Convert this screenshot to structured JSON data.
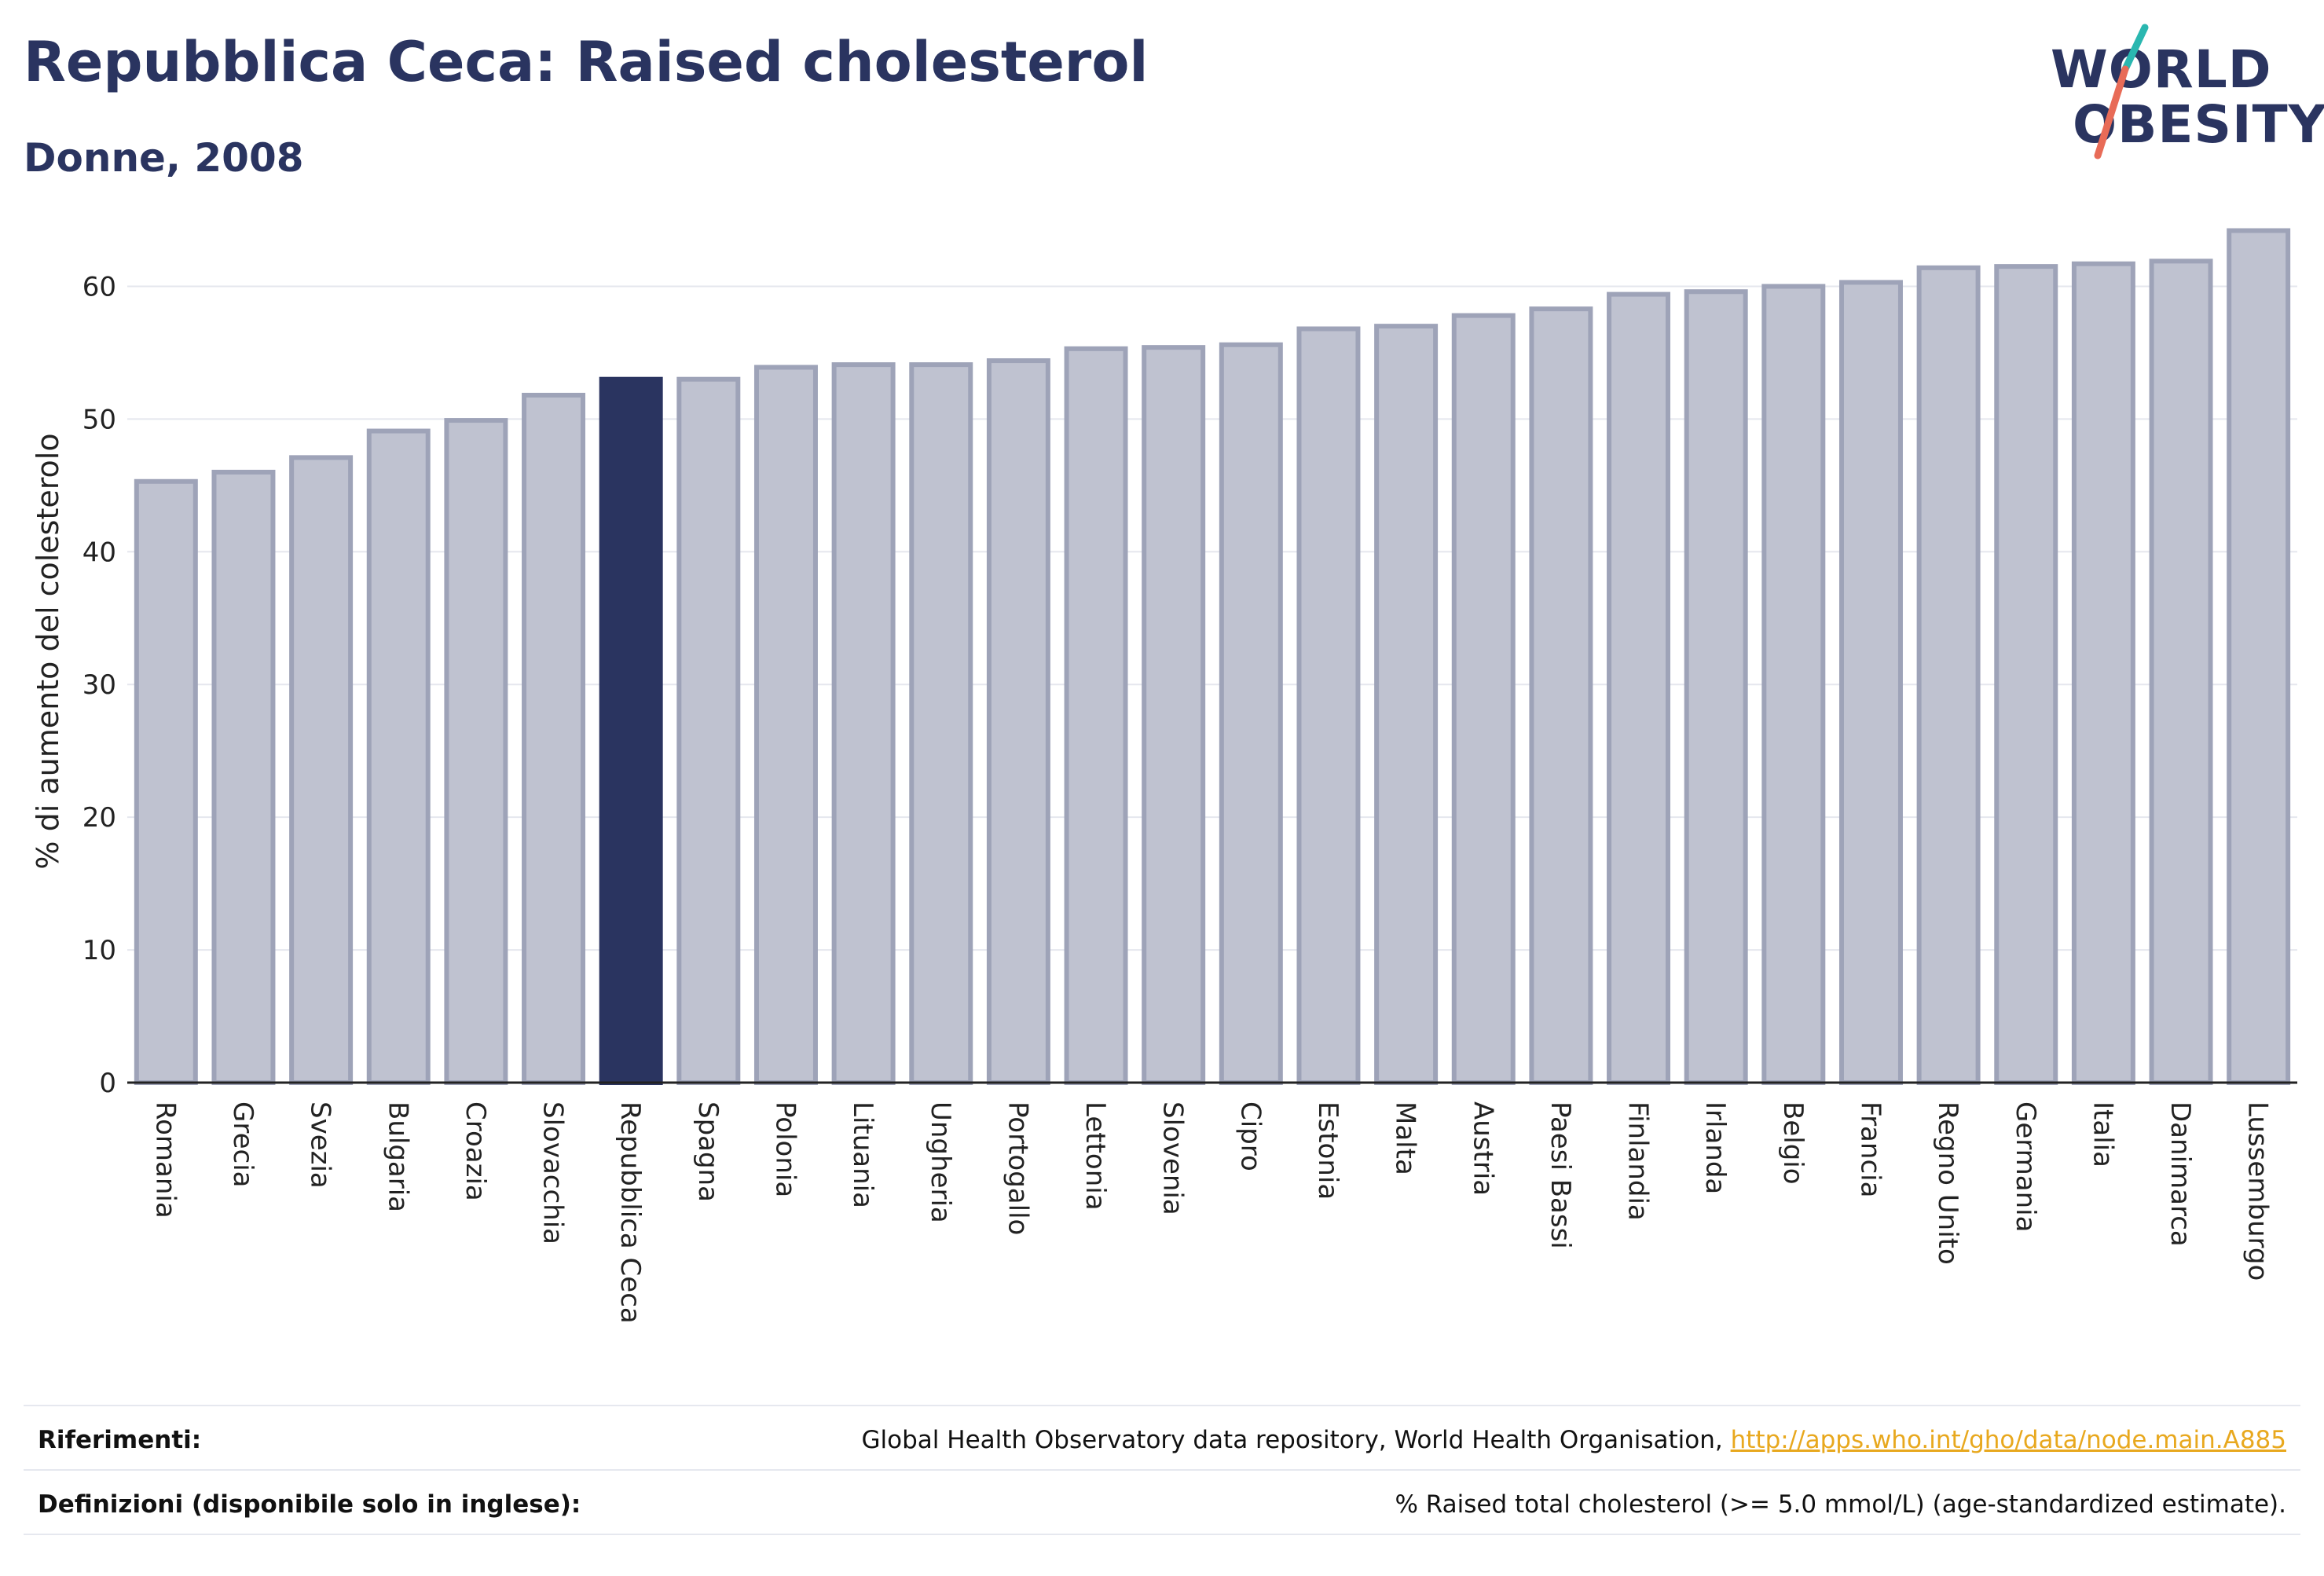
{
  "header": {
    "title": "Repubblica Ceca: Raised cholesterol",
    "subtitle": "Donne, 2008"
  },
  "logo": {
    "line1": "WORLD",
    "line2": "OBESITY",
    "colors": {
      "text": "#2a3460",
      "slash_top": "#2ab7b0",
      "slash_bottom": "#e86b57"
    }
  },
  "colors": {
    "bar_fill": "#bfc2d0",
    "bar_stroke": "#9ea3b8",
    "highlight": "#2a3460",
    "grid": "#e5e7ee",
    "axis": "#222222"
  },
  "chart_data": {
    "type": "bar",
    "title": "Repubblica Ceca: Raised cholesterol",
    "subtitle": "Donne, 2008",
    "ylabel": "% di aumento del colesterolo",
    "xlabel": "",
    "ylim": [
      0,
      65
    ],
    "yticks": [
      0,
      10,
      20,
      30,
      40,
      50,
      60
    ],
    "grid": true,
    "highlight_category": "Repubblica Ceca",
    "categories": [
      "Romania",
      "Grecia",
      "Svezia",
      "Bulgaria",
      "Croazia",
      "Slovacchia",
      "Repubblica Ceca",
      "Spagna",
      "Polonia",
      "Lituania",
      "Ungheria",
      "Portogallo",
      "Lettonia",
      "Slovenia",
      "Cipro",
      "Estonia",
      "Malta",
      "Austria",
      "Paesi Bassi",
      "Finlandia",
      "Irlanda",
      "Belgio",
      "Francia",
      "Regno Unito",
      "Germania",
      "Italia",
      "Danimarca",
      "Lussemburgo"
    ],
    "values": [
      45.3,
      46.0,
      47.1,
      49.1,
      49.9,
      51.8,
      53.0,
      53.0,
      53.9,
      54.1,
      54.1,
      54.4,
      55.3,
      55.4,
      55.6,
      56.8,
      57.0,
      57.8,
      58.3,
      59.4,
      59.6,
      60.0,
      60.3,
      61.4,
      61.5,
      61.7,
      61.9,
      64.2
    ]
  },
  "footer": {
    "references_label": "Riferimenti:",
    "references_text": "Global Health Observatory data repository, World Health Organisation, ",
    "references_link": "http://apps.who.int/gho/data/node.main.A885",
    "definitions_label": "Definizioni (disponibile solo in inglese):",
    "definitions_text": "% Raised total cholesterol (>= 5.0 mmol/L) (age-standardized estimate)."
  }
}
